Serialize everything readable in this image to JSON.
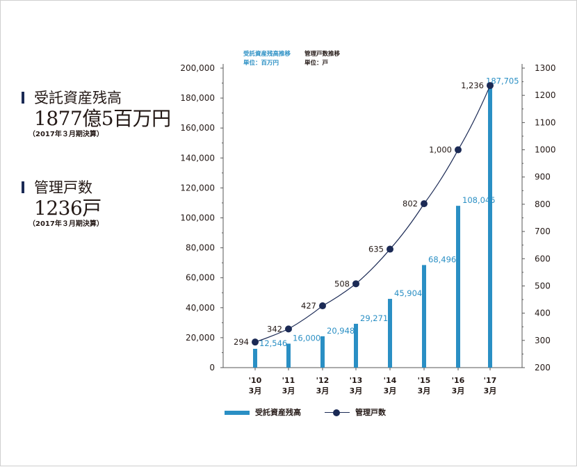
{
  "summary": {
    "assets": {
      "label": "受託資産残高",
      "value": "1877億5百万円",
      "note": "（2017年３月期決算）"
    },
    "units": {
      "label": "管理戸数",
      "value": "1236戸",
      "note": "（2017年３月期決算）"
    }
  },
  "colors": {
    "bar": "#2a8fc4",
    "line": "#1b2a55",
    "axis": "#555555",
    "text": "#231815"
  },
  "chart_data": {
    "type": "bar",
    "title": "",
    "categories": [
      "'10\n3月",
      "'11\n3月",
      "'12\n3月",
      "'13\n3月",
      "'14\n3月",
      "'15\n3月",
      "'16\n3月",
      "'17\n3月"
    ],
    "categories_line1": [
      "'10",
      "'11",
      "'12",
      "'13",
      "'14",
      "'15",
      "'16",
      "'17"
    ],
    "categories_line2": [
      "3月",
      "3月",
      "3月",
      "3月",
      "3月",
      "3月",
      "3月",
      "3月"
    ],
    "series": [
      {
        "name": "受託資産残高",
        "type": "bar",
        "axis": "left",
        "unit": "単位：百万円",
        "header": "受託資産残高推移",
        "values": [
          12546,
          16000,
          20948,
          29271,
          45904,
          68496,
          108045,
          187705
        ],
        "labels": [
          "12,546",
          "16,000",
          "20,948",
          "29,271",
          "45,904",
          "68,496",
          "108,045",
          "187,705"
        ]
      },
      {
        "name": "管理戸数",
        "type": "line",
        "axis": "right",
        "unit": "単位：戸",
        "header": "管理戸数推移",
        "values": [
          294,
          342,
          427,
          508,
          635,
          802,
          1000,
          1236
        ],
        "labels": [
          "294",
          "342",
          "427",
          "508",
          "635",
          "802",
          "1,000",
          "1,236"
        ]
      }
    ],
    "y_left": {
      "min": 0,
      "max": 200000,
      "ticks": [
        "0",
        "20,000",
        "40,000",
        "60,000",
        "80,000",
        "100,000",
        "120,000",
        "140,000",
        "160,000",
        "180,000",
        "200,000"
      ]
    },
    "y_right": {
      "min": 200,
      "max": 1300,
      "ticks": [
        "200",
        "300",
        "400",
        "500",
        "600",
        "700",
        "800",
        "900",
        "1000",
        "1100",
        "1200",
        "1300"
      ]
    },
    "legend": {
      "position": "bottom",
      "bar_label": "受託資産残高",
      "line_label": "管理戸数"
    },
    "grid": false
  }
}
